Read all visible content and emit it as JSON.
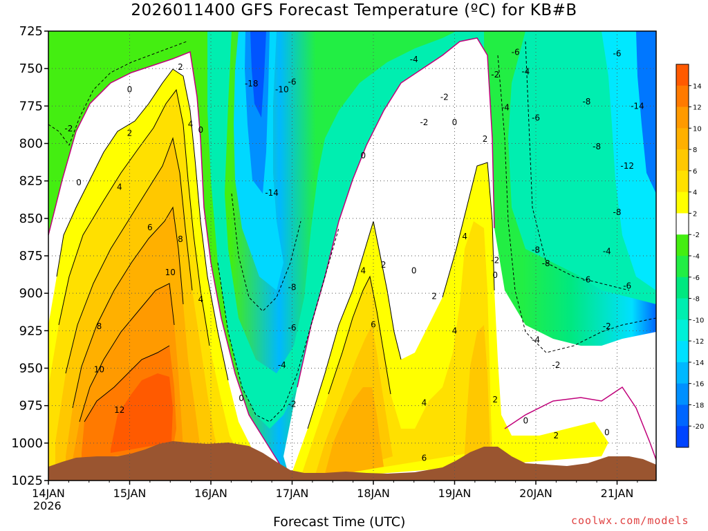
{
  "title": "2026011400 GFS Forecast Temperature (ºC) for KB#B",
  "credit": "coolwx.com/models",
  "chart_data": {
    "type": "heatmap",
    "title": "2026011400 GFS Forecast Temperature (ºC) for KB#B",
    "xlabel": "Forecast Time (UTC)",
    "ylabel": "",
    "y_axis": {
      "ticks": [
        725,
        750,
        775,
        800,
        825,
        850,
        875,
        900,
        925,
        950,
        975,
        1000,
        1025
      ],
      "range": [
        725,
        1025
      ],
      "inverted": true
    },
    "x_axis": {
      "ticks": [
        "14JAN",
        "15JAN",
        "16JAN",
        "17JAN",
        "18JAN",
        "19JAN",
        "20JAN",
        "21JAN"
      ],
      "year": "2026",
      "range": [
        "2026-01-14T00",
        "2026-01-21T12"
      ]
    },
    "grid": true,
    "colorbar": {
      "position": "right",
      "levels": [
        14,
        12,
        10,
        8,
        6,
        4,
        2,
        -2,
        -4,
        -6,
        -8,
        -10,
        -12,
        -14,
        -16,
        -18,
        -20
      ],
      "colors": {
        "above_14": "#ff5a00",
        "12_14": "#ff7a00",
        "10_12": "#ff9a00",
        "8_10": "#ffb000",
        "6_8": "#ffc800",
        "4_6": "#ffe000",
        "2_4": "#ffff00",
        "-2_2": "#ffffff",
        "-4_-2": "#44ee11",
        "-6_-4": "#22ee44",
        "-8_-6": "#00e880",
        "-10_-8": "#00eeb0",
        "-12_-10": "#00f0d8",
        "-14_-12": "#00e0ff",
        "-16_-14": "#00b8ff",
        "-18_-16": "#0090ff",
        "-20_-18": "#0066ff",
        "below_-20": "#0044ff"
      }
    },
    "contour_labels": [
      {
        "x": "14JAN 06",
        "p": 790,
        "v": "-2"
      },
      {
        "x": "14JAN 09",
        "p": 826,
        "v": "0"
      },
      {
        "x": "15JAN 00",
        "p": 764,
        "v": "0"
      },
      {
        "x": "15JAN 00",
        "p": 793,
        "v": "2"
      },
      {
        "x": "14JAN 21",
        "p": 829,
        "v": "4"
      },
      {
        "x": "15JAN 15",
        "p": 749,
        "v": "2"
      },
      {
        "x": "15JAN 21",
        "p": 791,
        "v": "0"
      },
      {
        "x": "15JAN 18",
        "p": 787,
        "v": "4"
      },
      {
        "x": "15JAN 06",
        "p": 856,
        "v": "6"
      },
      {
        "x": "15JAN 15",
        "p": 864,
        "v": "8"
      },
      {
        "x": "15JAN 12",
        "p": 886,
        "v": "10"
      },
      {
        "x": "15JAN 21",
        "p": 904,
        "v": "4"
      },
      {
        "x": "14JAN 15",
        "p": 922,
        "v": "8"
      },
      {
        "x": "14JAN 15",
        "p": 951,
        "v": "10"
      },
      {
        "x": "14JAN 21",
        "p": 978,
        "v": "12"
      },
      {
        "x": "16JAN 12",
        "p": 760,
        "v": "-18"
      },
      {
        "x": "16JAN 21",
        "p": 764,
        "v": "-10"
      },
      {
        "x": "17JAN 00",
        "p": 759,
        "v": "-6"
      },
      {
        "x": "16JAN 18",
        "p": 833,
        "v": "-14"
      },
      {
        "x": "17JAN 00",
        "p": 896,
        "v": "-8"
      },
      {
        "x": "16JAN 21",
        "p": 948,
        "v": "-4"
      },
      {
        "x": "17JAN 00",
        "p": 923,
        "v": "-6"
      },
      {
        "x": "16JAN 09",
        "p": 970,
        "v": "0"
      },
      {
        "x": "17JAN 00",
        "p": 974,
        "v": "-2"
      },
      {
        "x": "17JAN 21",
        "p": 808,
        "v": "0"
      },
      {
        "x": "18JAN 03",
        "p": 881,
        "v": "2"
      },
      {
        "x": "17JAN 21",
        "p": 885,
        "v": "4"
      },
      {
        "x": "18JAN 00",
        "p": 921,
        "v": "6"
      },
      {
        "x": "18JAN 12",
        "p": 885,
        "v": "0"
      },
      {
        "x": "18JAN 18",
        "p": 902,
        "v": "2"
      },
      {
        "x": "18JAN 15",
        "p": 973,
        "v": "4"
      },
      {
        "x": "18JAN 15",
        "p": 1010,
        "v": "6"
      },
      {
        "x": "18JAN 15",
        "p": 786,
        "v": "-2"
      },
      {
        "x": "18JAN 12",
        "p": 744,
        "v": "-4"
      },
      {
        "x": "18JAN 21",
        "p": 769,
        "v": "-2"
      },
      {
        "x": "19JAN 00",
        "p": 786,
        "v": "0"
      },
      {
        "x": "19JAN 09",
        "p": 797,
        "v": "2"
      },
      {
        "x": "19JAN 03",
        "p": 862,
        "v": "4"
      },
      {
        "x": "19JAN 12",
        "p": 754,
        "v": "-2"
      },
      {
        "x": "19JAN 18",
        "p": 739,
        "v": "-6"
      },
      {
        "x": "19JAN 21",
        "p": 752,
        "v": "-4"
      },
      {
        "x": "19JAN 15",
        "p": 776,
        "v": "-4"
      },
      {
        "x": "19JAN 12",
        "p": 878,
        "v": "-2"
      },
      {
        "x": "19JAN 12",
        "p": 888,
        "v": "0"
      },
      {
        "x": "19JAN 00",
        "p": 925,
        "v": "4"
      },
      {
        "x": "19JAN 12",
        "p": 971,
        "v": "2"
      },
      {
        "x": "20JAN 00",
        "p": 783,
        "v": "-6"
      },
      {
        "x": "20JAN 15",
        "p": 772,
        "v": "-8"
      },
      {
        "x": "20JAN 18",
        "p": 802,
        "v": "-8"
      },
      {
        "x": "21JAN 00",
        "p": 740,
        "v": "-6"
      },
      {
        "x": "21JAN 06",
        "p": 775,
        "v": "-14"
      },
      {
        "x": "21JAN 03",
        "p": 815,
        "v": "-12"
      },
      {
        "x": "21JAN 00",
        "p": 846,
        "v": "-8"
      },
      {
        "x": "20JAN 00",
        "p": 871,
        "v": "-8"
      },
      {
        "x": "20JAN 03",
        "p": 880,
        "v": "-8"
      },
      {
        "x": "20JAN 15",
        "p": 891,
        "v": "-6"
      },
      {
        "x": "20JAN 21",
        "p": 872,
        "v": "-4"
      },
      {
        "x": "21JAN 03",
        "p": 895,
        "v": "-6"
      },
      {
        "x": "20JAN 00",
        "p": 931,
        "v": "-4"
      },
      {
        "x": "20JAN 06",
        "p": 948,
        "v": "-2"
      },
      {
        "x": "20JAN 21",
        "p": 922,
        "v": "-2"
      },
      {
        "x": "19JAN 21",
        "p": 985,
        "v": "0"
      },
      {
        "x": "20JAN 06",
        "p": 995,
        "v": "2"
      },
      {
        "x": "20JAN 21",
        "p": 993,
        "v": "0"
      }
    ]
  }
}
